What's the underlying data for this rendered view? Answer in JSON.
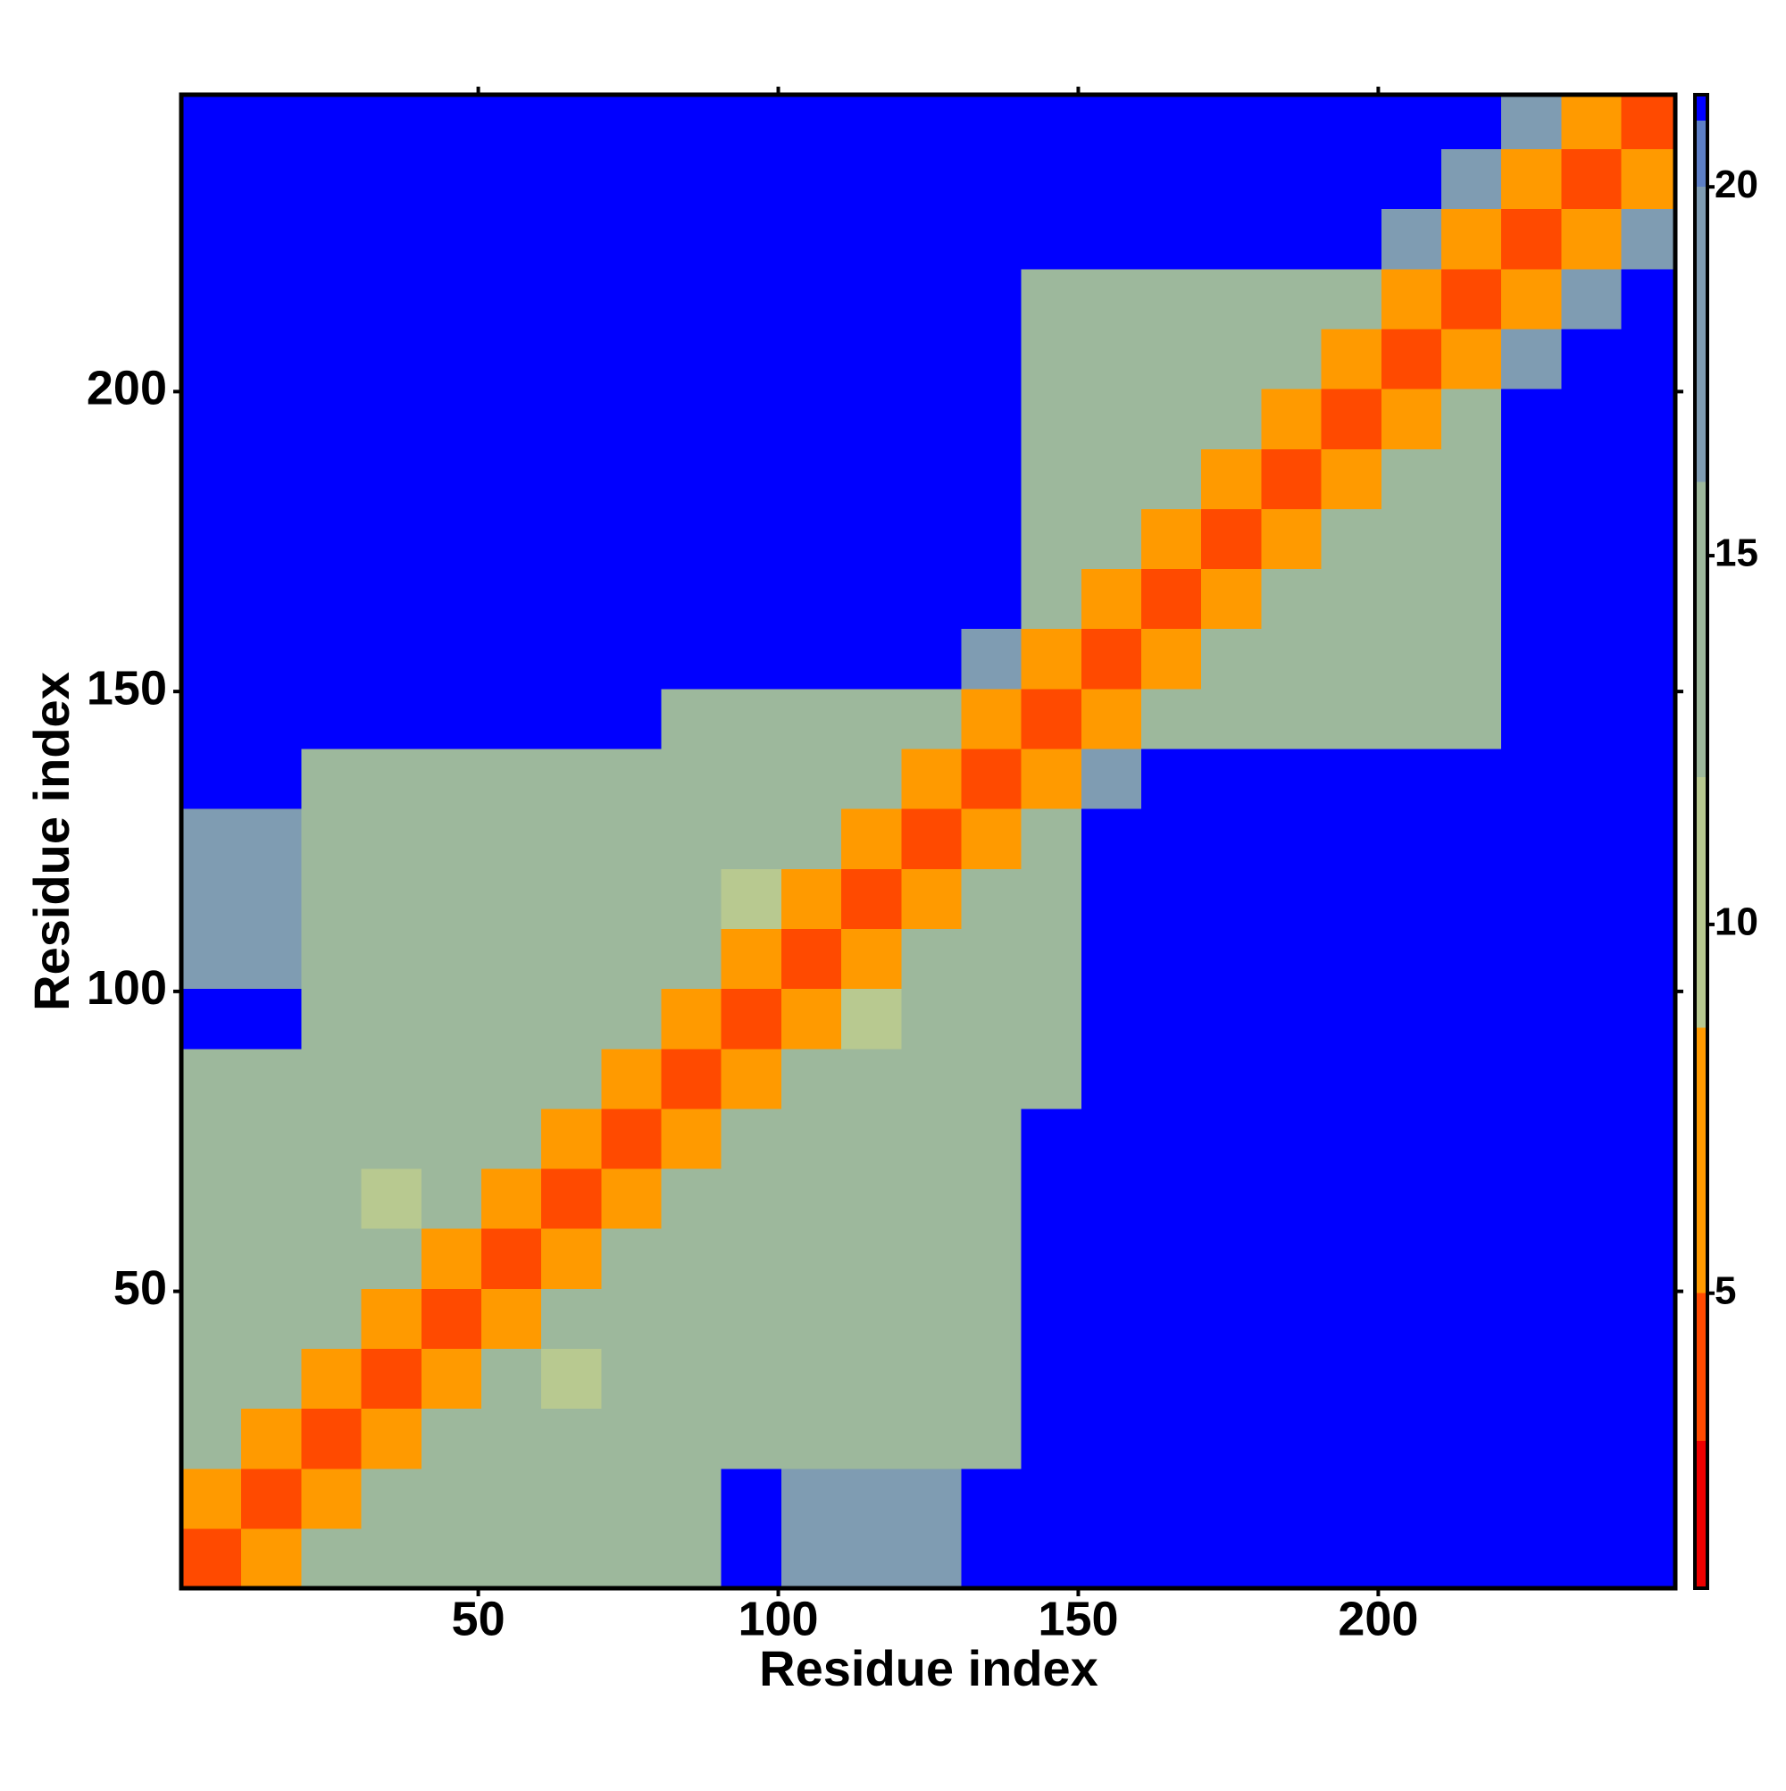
{
  "chart_data": {
    "type": "heatmap",
    "x_label": "Residue index",
    "y_label": "Residue index",
    "x_bins": [
      0.5,
      10.5,
      20.5,
      30.5,
      40.5,
      50.5,
      60.5,
      70.5,
      80.5,
      90.5,
      100.5,
      110.5,
      120.5,
      130.5,
      140.5,
      150.5,
      160.5,
      170.5,
      180.5,
      190.5,
      200.5,
      210.5,
      220.5,
      230.5,
      240.5,
      249.5
    ],
    "y_bins": [
      0.5,
      10.5,
      20.5,
      30.5,
      40.5,
      50.5,
      60.5,
      70.5,
      80.5,
      90.5,
      100.5,
      110.5,
      120.5,
      130.5,
      140.5,
      150.5,
      160.5,
      170.5,
      180.5,
      190.5,
      200.5,
      210.5,
      220.5,
      230.5,
      240.5,
      249.5
    ],
    "xlim": [
      0.5,
      249.5
    ],
    "ylim": [
      0.5,
      249.5
    ],
    "xticks": [
      50,
      100,
      150,
      200
    ],
    "yticks": [
      50,
      100,
      150,
      200
    ],
    "z": [
      [
        3,
        8,
        13,
        13,
        13,
        13,
        13,
        13,
        13,
        21,
        19,
        19,
        19,
        21,
        21,
        21,
        21,
        21,
        21,
        21,
        21,
        21,
        21,
        21,
        21
      ],
      [
        8,
        3,
        8,
        13,
        13,
        13,
        13,
        13,
        13,
        21,
        19,
        19,
        19,
        21,
        21,
        21,
        21,
        21,
        21,
        21,
        21,
        21,
        21,
        21,
        21
      ],
      [
        13,
        8,
        3,
        8,
        13,
        13,
        13,
        13,
        13,
        15,
        15,
        15,
        15,
        15,
        21,
        21,
        21,
        21,
        21,
        21,
        21,
        21,
        21,
        21,
        21
      ],
      [
        13,
        13,
        8,
        3,
        8,
        13,
        9,
        13,
        13,
        15,
        15,
        15,
        15,
        15,
        21,
        21,
        21,
        21,
        21,
        21,
        21,
        21,
        21,
        21,
        21
      ],
      [
        13,
        13,
        13,
        8,
        3,
        8,
        13,
        13,
        13,
        15,
        15,
        15,
        15,
        15,
        21,
        21,
        21,
        21,
        21,
        21,
        21,
        21,
        21,
        21,
        21
      ],
      [
        13,
        13,
        13,
        13,
        8,
        3,
        8,
        13,
        13,
        15,
        15,
        15,
        15,
        15,
        21,
        21,
        21,
        21,
        21,
        21,
        21,
        21,
        21,
        21,
        21
      ],
      [
        13,
        13,
        13,
        9,
        13,
        8,
        3,
        8,
        13,
        15,
        15,
        15,
        15,
        15,
        21,
        21,
        21,
        21,
        21,
        21,
        21,
        21,
        21,
        21,
        21
      ],
      [
        13,
        13,
        13,
        13,
        13,
        13,
        8,
        3,
        8,
        15,
        15,
        15,
        15,
        15,
        21,
        21,
        21,
        21,
        21,
        21,
        21,
        21,
        21,
        21,
        21
      ],
      [
        13,
        13,
        13,
        13,
        13,
        13,
        13,
        8,
        3,
        8,
        13,
        13,
        13,
        13,
        13,
        21,
        21,
        21,
        21,
        21,
        21,
        21,
        21,
        21,
        21
      ],
      [
        21,
        21,
        15,
        15,
        15,
        15,
        15,
        15,
        8,
        3,
        8,
        9,
        13,
        13,
        13,
        21,
        21,
        21,
        21,
        21,
        21,
        21,
        21,
        21,
        21
      ],
      [
        19,
        19,
        15,
        15,
        15,
        15,
        15,
        15,
        13,
        8,
        3,
        8,
        13,
        13,
        13,
        21,
        21,
        21,
        21,
        21,
        21,
        21,
        21,
        21,
        21
      ],
      [
        19,
        19,
        15,
        15,
        15,
        15,
        15,
        15,
        13,
        9,
        8,
        3,
        8,
        13,
        13,
        21,
        21,
        21,
        21,
        21,
        21,
        21,
        21,
        21,
        21
      ],
      [
        19,
        19,
        15,
        15,
        15,
        15,
        15,
        15,
        13,
        13,
        13,
        8,
        3,
        8,
        13,
        21,
        21,
        21,
        21,
        21,
        21,
        21,
        21,
        21,
        21
      ],
      [
        21,
        21,
        15,
        15,
        15,
        15,
        15,
        15,
        13,
        13,
        13,
        13,
        8,
        3,
        8,
        16,
        21,
        21,
        21,
        21,
        21,
        21,
        21,
        21,
        21
      ],
      [
        21,
        21,
        21,
        21,
        21,
        21,
        21,
        21,
        13,
        13,
        13,
        13,
        13,
        8,
        3,
        8,
        13,
        13,
        13,
        13,
        13,
        13,
        21,
        21,
        21
      ],
      [
        21,
        21,
        21,
        21,
        21,
        21,
        21,
        21,
        21,
        21,
        21,
        21,
        21,
        16,
        8,
        3,
        8,
        13,
        13,
        13,
        13,
        13,
        21,
        21,
        21
      ],
      [
        21,
        21,
        21,
        21,
        21,
        21,
        21,
        21,
        21,
        21,
        21,
        21,
        21,
        21,
        13,
        8,
        3,
        8,
        13,
        13,
        13,
        13,
        21,
        21,
        21
      ],
      [
        21,
        21,
        21,
        21,
        21,
        21,
        21,
        21,
        21,
        21,
        21,
        21,
        21,
        21,
        13,
        13,
        8,
        3,
        8,
        13,
        13,
        13,
        21,
        21,
        21
      ],
      [
        21,
        21,
        21,
        21,
        21,
        21,
        21,
        21,
        21,
        21,
        21,
        21,
        21,
        21,
        13,
        13,
        13,
        8,
        3,
        8,
        13,
        13,
        21,
        21,
        21
      ],
      [
        21,
        21,
        21,
        21,
        21,
        21,
        21,
        21,
        21,
        21,
        21,
        21,
        21,
        21,
        13,
        13,
        13,
        13,
        8,
        3,
        8,
        13,
        21,
        21,
        21
      ],
      [
        21,
        21,
        21,
        21,
        21,
        21,
        21,
        21,
        21,
        21,
        21,
        21,
        21,
        21,
        13,
        13,
        13,
        13,
        13,
        8,
        3,
        8,
        16,
        21,
        21
      ],
      [
        21,
        21,
        21,
        21,
        21,
        21,
        21,
        21,
        21,
        21,
        21,
        21,
        21,
        21,
        13,
        13,
        13,
        13,
        13,
        13,
        8,
        3,
        8,
        16,
        21
      ],
      [
        21,
        21,
        21,
        21,
        21,
        21,
        21,
        21,
        21,
        21,
        21,
        21,
        21,
        21,
        21,
        21,
        21,
        21,
        21,
        21,
        16,
        8,
        3,
        8,
        16
      ],
      [
        21,
        21,
        21,
        21,
        21,
        21,
        21,
        21,
        21,
        21,
        21,
        21,
        21,
        21,
        21,
        21,
        21,
        21,
        21,
        21,
        21,
        16,
        8,
        3,
        8
      ],
      [
        21,
        21,
        21,
        21,
        21,
        21,
        21,
        21,
        21,
        21,
        21,
        21,
        21,
        21,
        21,
        21,
        21,
        21,
        21,
        21,
        21,
        21,
        16,
        8,
        3
      ]
    ],
    "color_stops": [
      {
        "value": 1,
        "color": "#ee0000"
      },
      {
        "value": 3,
        "color": "#ff4a00"
      },
      {
        "value": 5,
        "color": "#ff9a00"
      },
      {
        "value": 8.6,
        "color": "#b8c990"
      },
      {
        "value": 12,
        "color": "#9db89c"
      },
      {
        "value": 16,
        "color": "#7f9cb2"
      },
      {
        "value": 20,
        "color": "#5d7fc6"
      },
      {
        "value": 20.9,
        "color": "#0000ff"
      }
    ],
    "clim": [
      1,
      21.25
    ],
    "cticks": [
      5,
      10,
      15,
      20
    ]
  }
}
